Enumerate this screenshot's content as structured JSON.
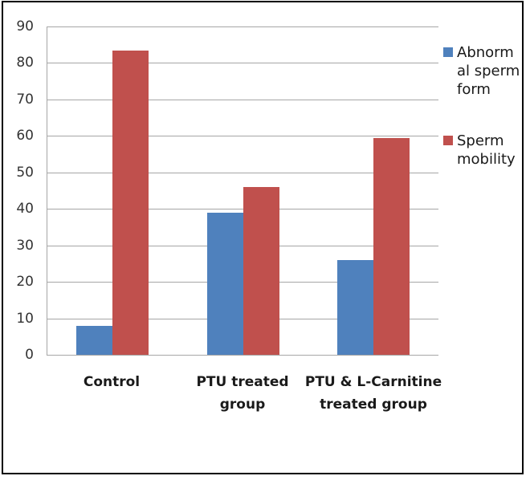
{
  "chart_data": {
    "type": "bar",
    "title": "",
    "xlabel": "",
    "ylabel": "",
    "categories": [
      "Control",
      "PTU treated group",
      "PTU & L-Carnitine treated group"
    ],
    "category_label_lines": [
      [
        "Control"
      ],
      [
        "PTU treated",
        "group"
      ],
      [
        "PTU & L-Carnitine",
        "treated group"
      ]
    ],
    "series": [
      {
        "name": "Abnormal sperm form",
        "legend_lines": [
          "Abnorm",
          "al sperm",
          "form"
        ],
        "color": "#4F81BD",
        "values": [
          8,
          39,
          26
        ]
      },
      {
        "name": "Sperm mobility",
        "legend_lines": [
          "Sperm",
          "mobility"
        ],
        "color": "#C0504D",
        "values": [
          83.5,
          46,
          59.5
        ]
      }
    ],
    "ylim": [
      0,
      90
    ],
    "yticks": [
      0,
      10,
      20,
      30,
      40,
      50,
      60,
      70,
      80,
      90
    ],
    "grid": true,
    "legend_position": "right"
  },
  "style": {
    "background": "#FFFFFF",
    "frame_color": "#000000",
    "gridline_color": "#A6A6A6",
    "axis_line_color": "#A6A6A6",
    "tick_label_color": "#333333",
    "category_label_color": "#1A1A1A",
    "legend_text_color": "#1A1A1A"
  }
}
